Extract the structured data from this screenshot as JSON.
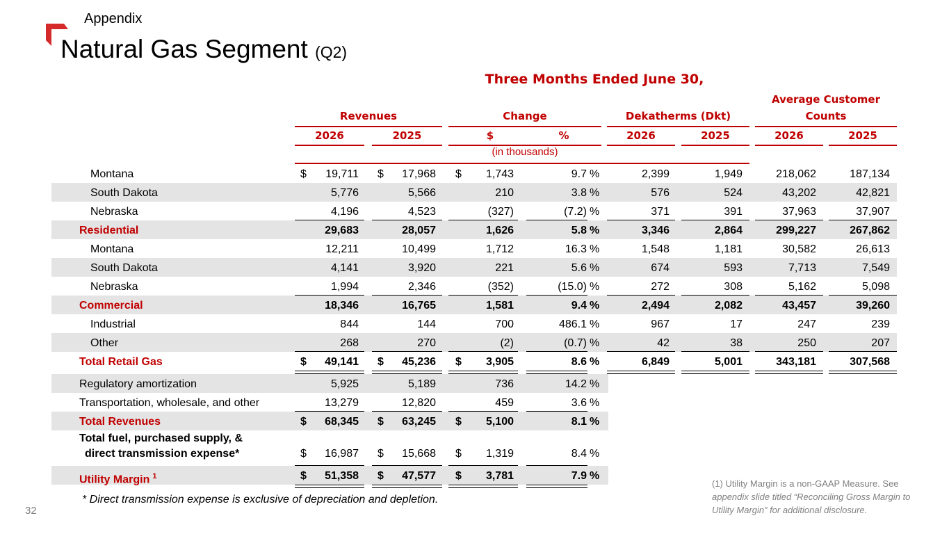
{
  "section_label": "Appendix",
  "title": "Natural Gas Segment",
  "title_suffix": "(Q2)",
  "period_header": "Three Months Ended June 30,",
  "group_headers": {
    "revenues": "Revenues",
    "change": "Change",
    "dekatherms": "Dekatherms (Dkt)",
    "customers_line1": "Average Customer",
    "customers_line2": "Counts"
  },
  "year_headers": {
    "rev_2026": "2026",
    "rev_2025": "2025",
    "chg_dollar": "$",
    "chg_pct": "%",
    "dkt_2026": "2026",
    "dkt_2025": "2025",
    "cust_2026": "2026",
    "cust_2025": "2025"
  },
  "units_note": "(in thousands)",
  "rows": [
    {
      "label": "Montana",
      "indent": true,
      "dollar": true,
      "rev26": "19,711",
      "rev25": "17,968",
      "chg": "1,743",
      "pct": "9.7",
      "dkt26": "2,399",
      "dkt25": "1,949",
      "cust26": "218,062",
      "cust25": "187,134"
    },
    {
      "label": "South Dakota",
      "indent": true,
      "rev26": "5,776",
      "rev25": "5,566",
      "chg": "210",
      "pct": "3.8",
      "dkt26": "576",
      "dkt25": "524",
      "cust26": "43,202",
      "cust25": "42,821"
    },
    {
      "label": "Nebraska",
      "indent": true,
      "rev26": "4,196",
      "rev25": "4,523",
      "chg": "(327)",
      "pct": "(7.2)",
      "dkt26": "371",
      "dkt25": "391",
      "cust26": "37,963",
      "cust25": "37,907"
    },
    {
      "label": "Residential",
      "total": true,
      "rev26": "29,683",
      "rev25": "28,057",
      "chg": "1,626",
      "pct": "5.8",
      "dkt26": "3,346",
      "dkt25": "2,864",
      "cust26": "299,227",
      "cust25": "267,862"
    },
    {
      "label": "Montana",
      "indent": true,
      "rev26": "12,211",
      "rev25": "10,499",
      "chg": "1,712",
      "pct": "16.3",
      "dkt26": "1,548",
      "dkt25": "1,181",
      "cust26": "30,582",
      "cust25": "26,613"
    },
    {
      "label": "South Dakota",
      "indent": true,
      "rev26": "4,141",
      "rev25": "3,920",
      "chg": "221",
      "pct": "5.6",
      "dkt26": "674",
      "dkt25": "593",
      "cust26": "7,713",
      "cust25": "7,549"
    },
    {
      "label": "Nebraska",
      "indent": true,
      "rev26": "1,994",
      "rev25": "2,346",
      "chg": "(352)",
      "pct": "(15.0)",
      "dkt26": "272",
      "dkt25": "308",
      "cust26": "5,162",
      "cust25": "5,098"
    },
    {
      "label": "Commercial",
      "total": true,
      "rev26": "18,346",
      "rev25": "16,765",
      "chg": "1,581",
      "pct": "9.4",
      "dkt26": "2,494",
      "dkt25": "2,082",
      "cust26": "43,457",
      "cust25": "39,260"
    },
    {
      "label": "Industrial",
      "indent": true,
      "rev26": "844",
      "rev25": "144",
      "chg": "700",
      "pct": "486.1",
      "dkt26": "967",
      "dkt25": "17",
      "cust26": "247",
      "cust25": "239"
    },
    {
      "label": "Other",
      "indent": true,
      "rev26": "268",
      "rev25": "270",
      "chg": "(2)",
      "pct": "(0.7)",
      "dkt26": "42",
      "dkt25": "38",
      "cust26": "250",
      "cust25": "207"
    },
    {
      "label": "Total Retail Gas",
      "total": true,
      "grand": true,
      "dollar": true,
      "rev26": "49,141",
      "rev25": "45,236",
      "chg": "3,905",
      "pct": "8.6",
      "dkt26": "6,849",
      "dkt25": "5,001",
      "cust26": "343,181",
      "cust25": "307,568"
    }
  ],
  "rows2": [
    {
      "label": "Regulatory amortization",
      "rev26": "5,925",
      "rev25": "5,189",
      "chg": "736",
      "pct": "14.2"
    },
    {
      "label": "Transportation, wholesale, and other",
      "rev26": "13,279",
      "rev25": "12,820",
      "chg": "459",
      "pct": "3.6"
    },
    {
      "label": "Total Revenues",
      "total": true,
      "dollar": true,
      "rev26": "68,345",
      "rev25": "63,245",
      "chg": "5,100",
      "pct": "8.1"
    },
    {
      "label": "Total fuel, purchased supply, &",
      "label2": "direct transmission expense*",
      "twoline": true,
      "dollar": true,
      "rev26": "16,987",
      "rev25": "15,668",
      "chg": "1,319",
      "pct": "8.4"
    },
    {
      "label": "Utility Margin",
      "sup": "1",
      "total": true,
      "grand": true,
      "dollar": true,
      "rev26": "51,358",
      "rev25": "47,577",
      "chg": "3,781",
      "pct": "7.9"
    }
  ],
  "pct_sign": "%",
  "dollar_sign": "$",
  "footnote_direct": "* Direct transmission expense is exclusive of depreciation and depletion.",
  "footnote_margin_plain": "(1) Utility Margin is a non-GAAP Measure.  See",
  "footnote_margin_italic": "appendix slide titled “Reconciling Gross Margin to Utility Margin” for additional disclosure.",
  "page_number": "32",
  "colors": {
    "accent": "#c00000",
    "shade": "#e4e4e4",
    "muted": "#808080"
  }
}
